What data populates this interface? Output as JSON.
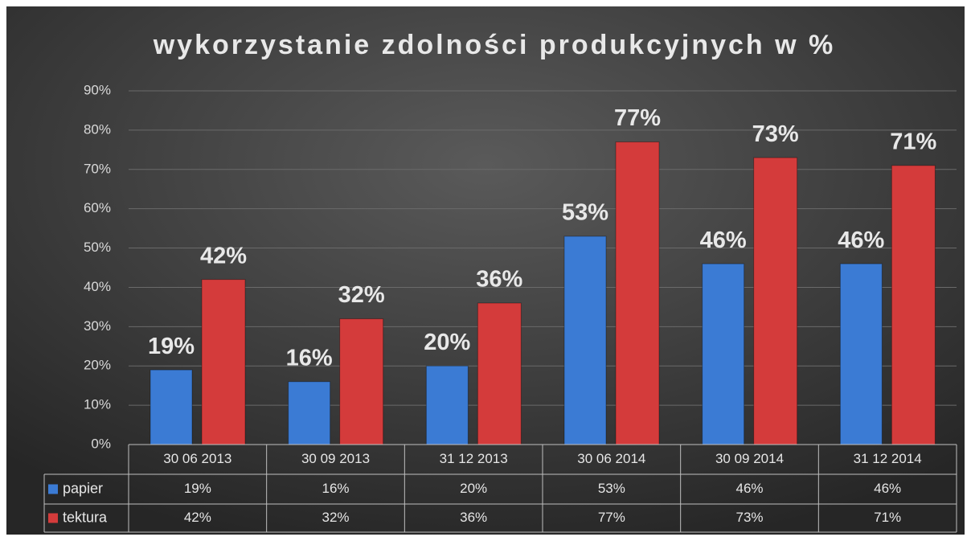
{
  "chart_data": {
    "type": "bar",
    "title": "wykorzystanie zdolności produkcyjnych w %",
    "categories": [
      "30 06 2013",
      "30 09 2013",
      "31 12 2013",
      "30 06 2014",
      "30 09 2014",
      "31 12 2014"
    ],
    "series": [
      {
        "name": "papier",
        "color": "#3b7bd4",
        "values": [
          19,
          16,
          20,
          53,
          46,
          46
        ],
        "value_labels": [
          "19%",
          "16%",
          "20%",
          "53%",
          "46%",
          "46%"
        ]
      },
      {
        "name": "tektura",
        "color": "#d43b3b",
        "values": [
          42,
          32,
          36,
          77,
          73,
          71
        ],
        "value_labels": [
          "42%",
          "32%",
          "36%",
          "77%",
          "73%",
          "71%"
        ]
      }
    ],
    "ylim": [
      0,
      90
    ],
    "yticks": [
      {
        "value": 0,
        "label": "0%"
      },
      {
        "value": 10,
        "label": "10%"
      },
      {
        "value": 20,
        "label": "20%"
      },
      {
        "value": 30,
        "label": "30%"
      },
      {
        "value": 40,
        "label": "40%"
      },
      {
        "value": 50,
        "label": "50%"
      },
      {
        "value": 60,
        "label": "60%"
      },
      {
        "value": 70,
        "label": "70%"
      },
      {
        "value": 80,
        "label": "80%"
      },
      {
        "value": 90,
        "label": "90%"
      }
    ],
    "grid": true
  }
}
